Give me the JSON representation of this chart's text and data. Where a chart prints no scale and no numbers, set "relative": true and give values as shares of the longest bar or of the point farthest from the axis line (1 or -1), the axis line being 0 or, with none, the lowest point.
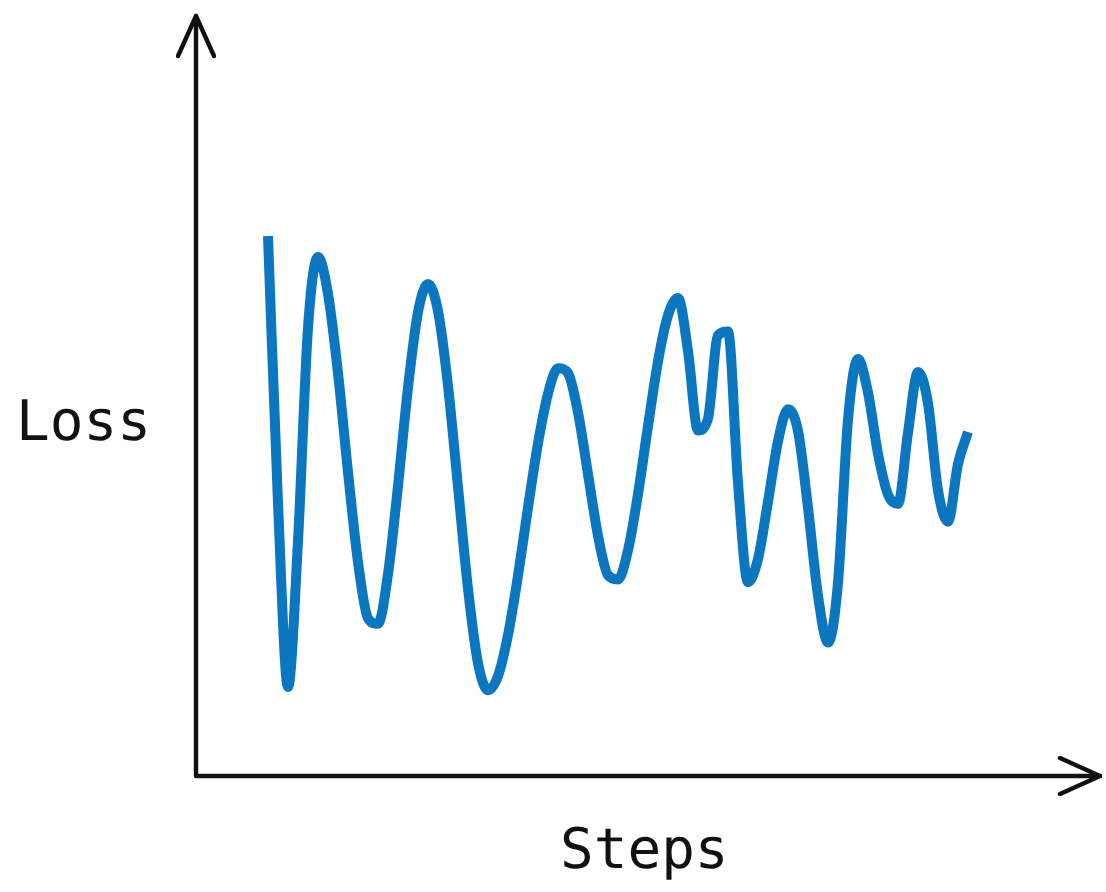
{
  "chart_data": {
    "type": "line",
    "xlabel": "Steps",
    "ylabel": "Loss",
    "relative": true,
    "categories": [
      null,
      null,
      null,
      null,
      null,
      null,
      null,
      null,
      null,
      null,
      null,
      null,
      null,
      null,
      null,
      null,
      null,
      null,
      null,
      null,
      null,
      null,
      null,
      null,
      null,
      null,
      null,
      null,
      null,
      null,
      null,
      null,
      null,
      null,
      null,
      null,
      null,
      null,
      null,
      null,
      null,
      null,
      null,
      null,
      null,
      null,
      null,
      null,
      null,
      null,
      null,
      null,
      null,
      null,
      null,
      null,
      null,
      null,
      null,
      null,
      null,
      null,
      null,
      null,
      null,
      null,
      null,
      null,
      null,
      null,
      null
    ],
    "series": [
      {
        "color": "#0a77c0",
        "values": [
          1.0,
          0.505,
          0.165,
          0.435,
          0.83,
          0.961,
          0.893,
          0.746,
          0.563,
          0.396,
          0.292,
          0.282,
          0.374,
          0.537,
          0.719,
          0.859,
          0.911,
          0.861,
          0.723,
          0.535,
          0.347,
          0.209,
          0.159,
          0.185,
          0.261,
          0.371,
          0.497,
          0.616,
          0.708,
          0.755,
          0.746,
          0.673,
          0.559,
          0.445,
          0.372,
          0.364,
          0.418,
          0.522,
          0.648,
          0.768,
          0.853,
          0.885,
          0.787,
          0.64,
          0.662,
          0.816,
          0.823,
          0.543,
          0.359,
          0.402,
          0.508,
          0.62,
          0.679,
          0.639,
          0.497,
          0.334,
          0.247,
          0.358,
          0.66,
          0.772,
          0.71,
          0.597,
          0.521,
          0.504,
          0.636,
          0.748,
          0.69,
          0.529,
          0.471,
          0.578,
          0.637
        ]
      }
    ]
  }
}
